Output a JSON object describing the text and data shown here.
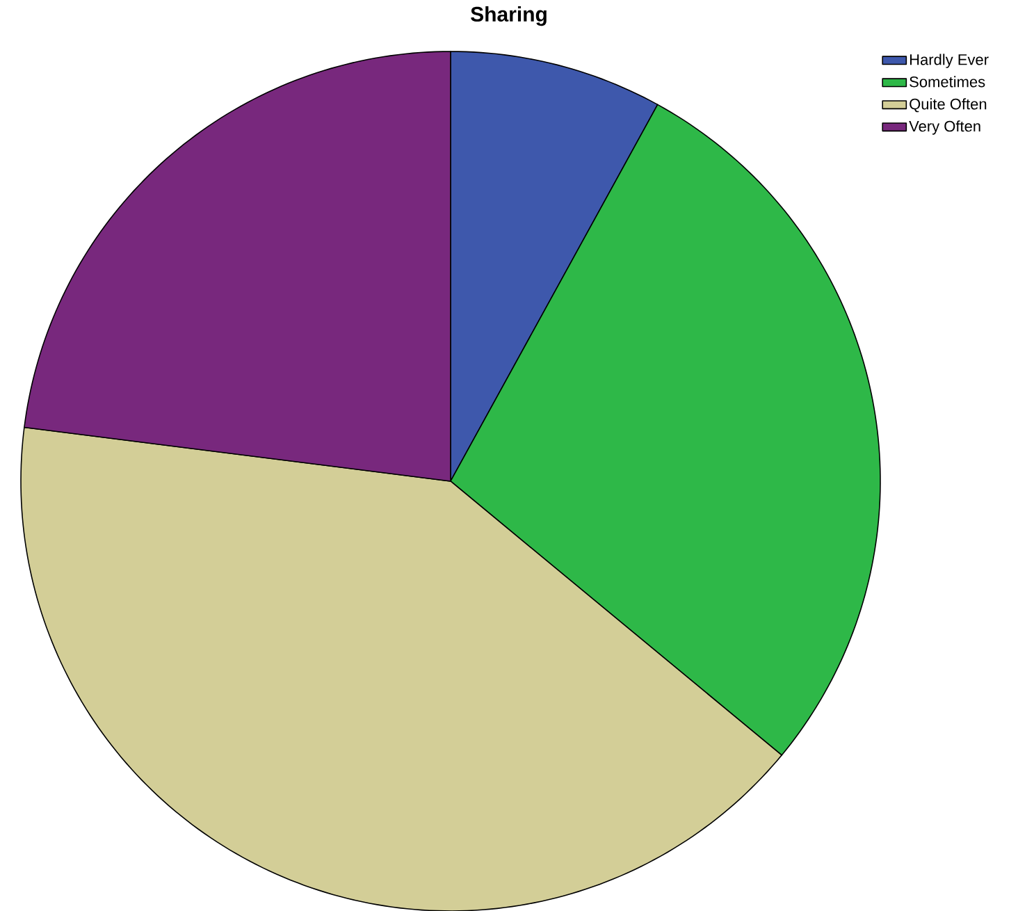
{
  "chart_data": {
    "type": "pie",
    "title": "Sharing",
    "categories": [
      "Hardly Ever",
      "Sometimes",
      "Quite Often",
      "Very Often"
    ],
    "values": [
      8,
      28,
      41,
      23
    ],
    "colors": [
      "#3e58ac",
      "#2eb848",
      "#d3ce97",
      "#78287d"
    ],
    "legend": "top right"
  }
}
